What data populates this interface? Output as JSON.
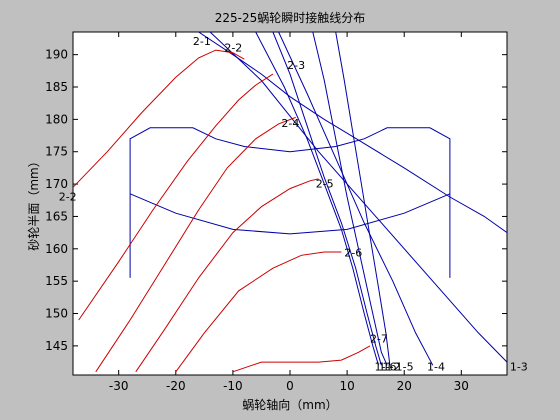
{
  "chart_data": {
    "type": "line",
    "title": "225-25蜗轮瞬时接触线分布",
    "xlabel": "蜗轮轴向（mm）",
    "ylabel": "砂轮半面（mm）",
    "xlim": [
      -38,
      38
    ],
    "ylim": [
      140.5,
      193.5
    ],
    "xticks": [
      -30,
      -20,
      -10,
      0,
      10,
      20,
      30
    ],
    "yticks": [
      145,
      150,
      155,
      160,
      165,
      170,
      175,
      180,
      185,
      190
    ],
    "grid": false,
    "colors": {
      "background": "#c0c0c0",
      "plot_bg": "#ffffff",
      "contact_lines": "#cc0000",
      "wheel_lines": "#0000aa"
    },
    "red_contact_lines": [
      {
        "name": "2-1",
        "points": [
          [
            -38,
            169.5
          ],
          [
            -32,
            175
          ],
          [
            -26,
            181
          ],
          [
            -20,
            186.5
          ],
          [
            -16,
            189.5
          ],
          [
            -13,
            190.7
          ],
          [
            -10,
            190.3
          ],
          [
            -8,
            189.3
          ]
        ]
      },
      {
        "name": "2-3",
        "points": [
          [
            -37,
            149
          ],
          [
            -30,
            158
          ],
          [
            -24,
            166
          ],
          [
            -18,
            173.5
          ],
          [
            -13,
            179
          ],
          [
            -9,
            183
          ],
          [
            -6,
            185.3
          ],
          [
            -3,
            187
          ]
        ]
      },
      {
        "name": "2-4",
        "points": [
          [
            -34,
            141
          ],
          [
            -28,
            149
          ],
          [
            -22,
            157.5
          ],
          [
            -16,
            166
          ],
          [
            -11,
            172.5
          ],
          [
            -6,
            177
          ],
          [
            -2,
            179.3
          ],
          [
            1,
            180.3
          ]
        ]
      },
      {
        "name": "2-5",
        "points": [
          [
            -27,
            141
          ],
          [
            -22,
            147.5
          ],
          [
            -16,
            155.5
          ],
          [
            -10,
            162.5
          ],
          [
            -5,
            166.5
          ],
          [
            0,
            169.3
          ],
          [
            3.5,
            170.5
          ],
          [
            5,
            170.8
          ]
        ]
      },
      {
        "name": "2-6",
        "points": [
          [
            -20,
            141
          ],
          [
            -15,
            147
          ],
          [
            -9,
            153.5
          ],
          [
            -3,
            157
          ],
          [
            2,
            159
          ],
          [
            6,
            159.5
          ],
          [
            9,
            159.5
          ]
        ]
      },
      {
        "name": "2-7",
        "points": [
          [
            -10,
            141
          ],
          [
            -5,
            142.5
          ],
          [
            0,
            142.5
          ],
          [
            5,
            142.5
          ],
          [
            9,
            142.8
          ],
          [
            12,
            144
          ],
          [
            14,
            145
          ]
        ]
      }
    ],
    "blue_lines": [
      {
        "name": "wheel-outer-rim",
        "points": [
          [
            -28,
            155.5
          ],
          [
            -28,
            177
          ],
          [
            -24.5,
            178.7
          ],
          [
            -17,
            178.7
          ],
          [
            -13,
            177
          ],
          [
            -8,
            175.8
          ],
          [
            0,
            175
          ],
          [
            8,
            175.8
          ],
          [
            13,
            177
          ],
          [
            17,
            178.7
          ],
          [
            24.5,
            178.7
          ],
          [
            28,
            177
          ],
          [
            28,
            155.5
          ]
        ]
      },
      {
        "name": "wheel-inner-arc",
        "points": [
          [
            -28,
            168.5
          ],
          [
            -20,
            165.5
          ],
          [
            -10,
            163
          ],
          [
            0,
            162.3
          ],
          [
            10,
            163
          ],
          [
            20,
            165.5
          ],
          [
            28,
            168.5
          ]
        ]
      },
      {
        "name": "contact-1-1",
        "points": [
          [
            -6,
            193.5
          ],
          [
            -1,
            185
          ],
          [
            3,
            177
          ],
          [
            6,
            170
          ],
          [
            9,
            163
          ],
          [
            11,
            157
          ],
          [
            13,
            150
          ],
          [
            14.5,
            145
          ],
          [
            15.5,
            142
          ]
        ]
      },
      {
        "name": "contact-1-2",
        "points": [
          [
            -3,
            193.5
          ],
          [
            0,
            187
          ],
          [
            3,
            179
          ],
          [
            6,
            171
          ],
          [
            9,
            164
          ],
          [
            11.5,
            157
          ],
          [
            13.5,
            150
          ],
          [
            15,
            145
          ],
          [
            16,
            142
          ]
        ]
      },
      {
        "name": "contact-1-3",
        "points": [
          [
            -14,
            193.5
          ],
          [
            -5,
            186
          ],
          [
            5,
            175
          ],
          [
            15,
            165
          ],
          [
            25,
            155
          ],
          [
            33,
            147
          ],
          [
            38,
            142.5
          ]
        ]
      },
      {
        "name": "contact-1-4",
        "points": [
          [
            -2,
            193.5
          ],
          [
            3,
            184
          ],
          [
            8,
            174
          ],
          [
            13,
            164
          ],
          [
            18,
            155
          ],
          [
            22,
            147
          ],
          [
            25,
            142
          ]
        ]
      },
      {
        "name": "contact-1-5",
        "points": [
          [
            4,
            193.5
          ],
          [
            6,
            186
          ],
          [
            8,
            177
          ],
          [
            10,
            168
          ],
          [
            12,
            160
          ],
          [
            14,
            152
          ],
          [
            16,
            144
          ],
          [
            17,
            142
          ]
        ]
      },
      {
        "name": "contact-1-6",
        "points": [
          [
            8,
            193.5
          ],
          [
            9.5,
            186
          ],
          [
            11,
            178
          ],
          [
            12.5,
            170
          ],
          [
            14,
            162
          ],
          [
            15.5,
            154
          ],
          [
            16.8,
            147
          ],
          [
            17.5,
            142
          ]
        ]
      },
      {
        "name": "contact-upper-envelope",
        "points": [
          [
            -16,
            193.5
          ],
          [
            -10,
            190
          ],
          [
            -5,
            187
          ],
          [
            0,
            183.5
          ],
          [
            6,
            180
          ],
          [
            12,
            176.8
          ],
          [
            20,
            172.5
          ],
          [
            28,
            168
          ],
          [
            34,
            165
          ],
          [
            38,
            162.5
          ]
        ]
      }
    ],
    "annotations": [
      {
        "text": "2-1",
        "x": -17,
        "y": 191.5
      },
      {
        "text": "2-2",
        "x": -11.5,
        "y": 190.5
      },
      {
        "text": "2-3",
        "x": -0.5,
        "y": 187.8
      },
      {
        "text": "2-4",
        "x": -1.5,
        "y": 178.8
      },
      {
        "text": "2-5",
        "x": 4.5,
        "y": 169.5
      },
      {
        "text": "2-6",
        "x": 9.5,
        "y": 158.8
      },
      {
        "text": "2-7",
        "x": 14,
        "y": 145.5
      },
      {
        "text": "2-2",
        "x": -40.5,
        "y": 167.5
      },
      {
        "text": "1-1",
        "x": 14.8,
        "y": 141.2
      },
      {
        "text": "1-2",
        "x": 16.2,
        "y": 141.2
      },
      {
        "text": "1-6",
        "x": 15.5,
        "y": 141.2
      },
      {
        "text": "1-5",
        "x": 18.5,
        "y": 141.2
      },
      {
        "text": "1-4",
        "x": 24,
        "y": 141.2
      },
      {
        "text": "1-3",
        "x": 38.5,
        "y": 141.2
      }
    ]
  }
}
